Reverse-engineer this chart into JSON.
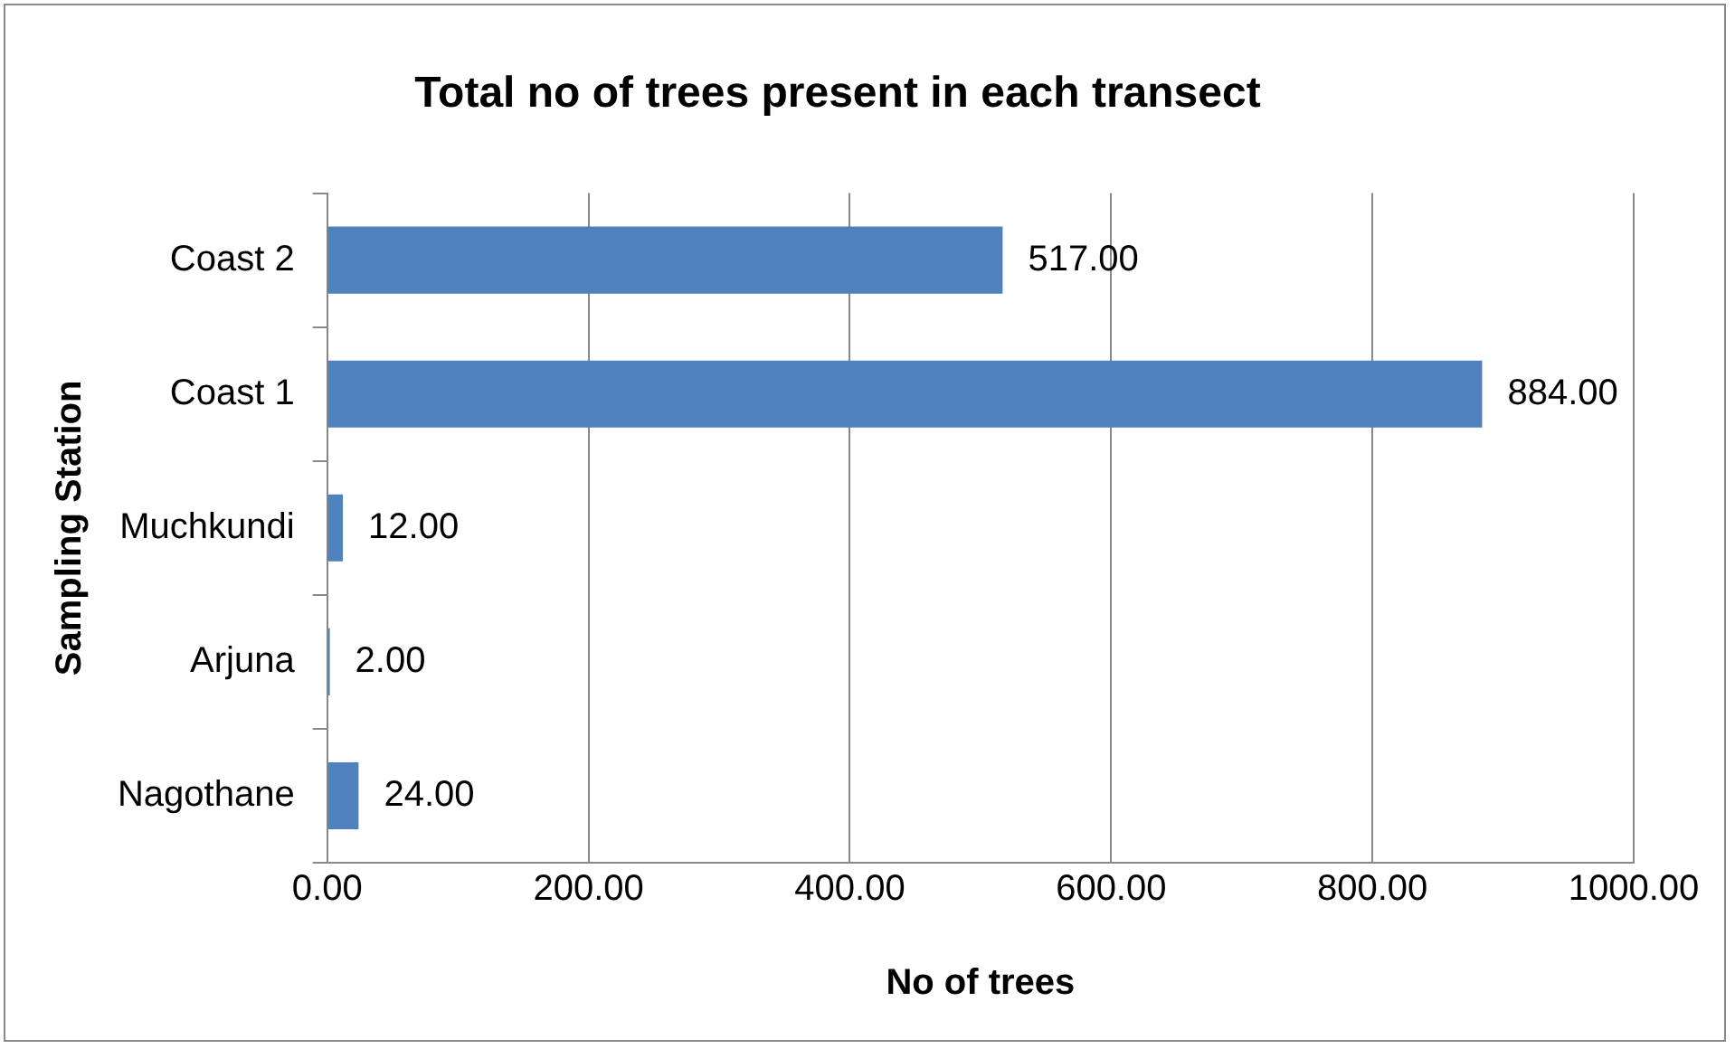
{
  "chart_data": {
    "type": "bar",
    "orientation": "horizontal",
    "title": "Total no of trees present in each transect",
    "xlabel": "No of trees",
    "ylabel": "Sampling Station",
    "categories": [
      "Coast 2",
      "Coast 1",
      "Muchkundi",
      "Arjuna",
      "Nagothane"
    ],
    "values": [
      517,
      884,
      12,
      2,
      24
    ],
    "value_labels": [
      "517.00",
      "884.00",
      "12.00",
      "2.00",
      "24.00"
    ],
    "color": "#4f81bd",
    "xlim": [
      0,
      1000
    ],
    "xticks": [
      {
        "value": 0,
        "label": "0.00"
      },
      {
        "value": 200,
        "label": "200.00"
      },
      {
        "value": 400,
        "label": "400.00"
      },
      {
        "value": 600,
        "label": "600.00"
      },
      {
        "value": 800,
        "label": "800.00"
      },
      {
        "value": 1000,
        "label": "1000.00"
      }
    ],
    "grid": "x",
    "legend": false
  }
}
